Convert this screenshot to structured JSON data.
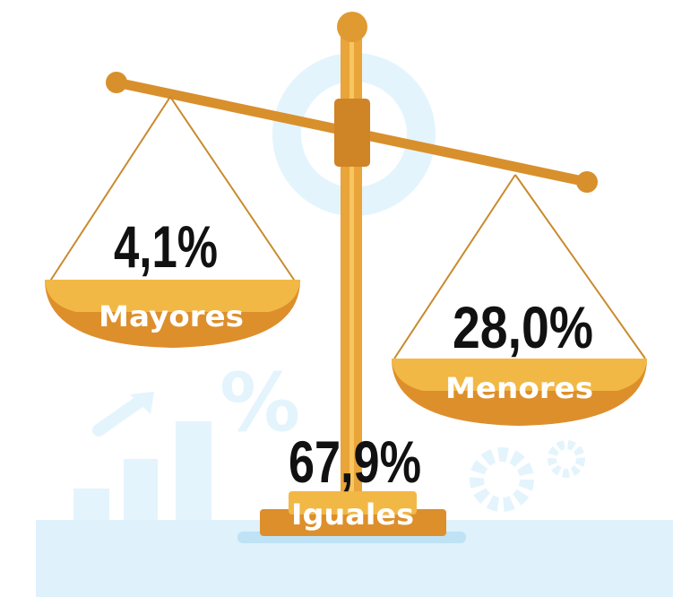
{
  "items": [
    {
      "value": "4,1%",
      "label": "Mayores"
    },
    {
      "value": "28,0%",
      "label": "Menores"
    },
    {
      "value": "67,9%",
      "label": "Iguales"
    }
  ]
}
